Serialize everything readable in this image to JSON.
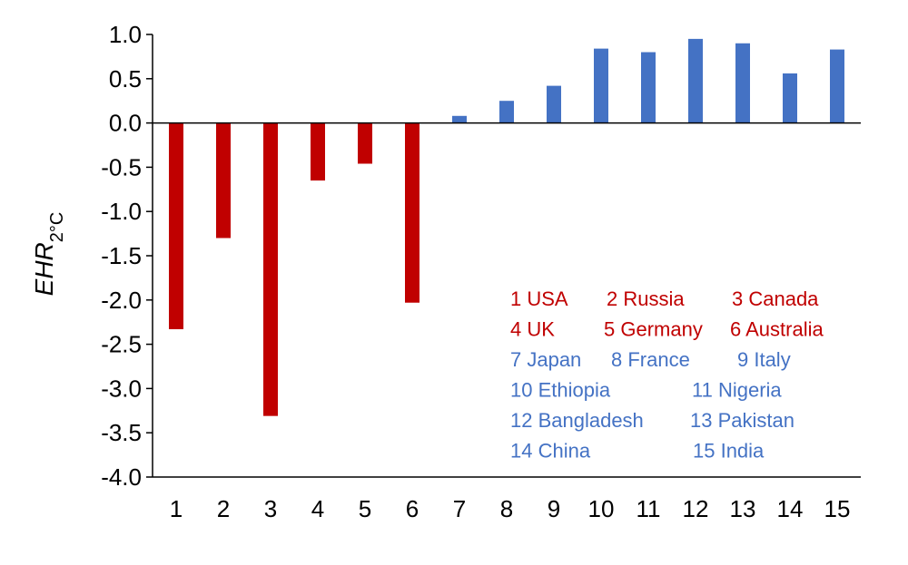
{
  "chart_data": {
    "type": "bar",
    "title": "",
    "xlabel": "",
    "ylabel": {
      "main": "EHR",
      "sub": "2°C"
    },
    "ylim": [
      -4.0,
      1.0
    ],
    "yticks": [
      "1.0",
      "0.5",
      "0.0",
      "-0.5",
      "-1.0",
      "-1.5",
      "-2.0",
      "-2.5",
      "-3.0",
      "-3.5",
      "-4.0"
    ],
    "ytick_values": [
      1.0,
      0.5,
      0.0,
      -0.5,
      -1.0,
      -1.5,
      -2.0,
      -2.5,
      -3.0,
      -3.5,
      -4.0
    ],
    "categories": [
      "1",
      "2",
      "3",
      "4",
      "5",
      "6",
      "7",
      "8",
      "9",
      "10",
      "11",
      "12",
      "13",
      "14",
      "15"
    ],
    "values": [
      -2.33,
      -1.3,
      -3.31,
      -0.65,
      -0.46,
      -2.03,
      0.08,
      0.25,
      0.42,
      0.84,
      0.8,
      0.95,
      0.9,
      0.56,
      0.83
    ],
    "colors": {
      "developed": "#c00000",
      "developing": "#4472c4"
    },
    "groups": [
      "developed",
      "developed",
      "developed",
      "developed",
      "developed",
      "developed",
      "developing",
      "developing",
      "developing",
      "developing",
      "developing",
      "developing",
      "developing",
      "developing",
      "developing"
    ],
    "legend_rows": [
      {
        "group": "developed",
        "items": [
          "1 USA",
          "2 Russia",
          "3 Canada"
        ]
      },
      {
        "group": "developed",
        "items": [
          "4 UK",
          "5 Germany",
          "6 Australia"
        ]
      },
      {
        "group": "developing",
        "items": [
          "7 Japan",
          "8 France",
          "9 Italy"
        ]
      },
      {
        "group": "developing",
        "items": [
          "10 Ethiopia",
          "11 Nigeria"
        ]
      },
      {
        "group": "developing",
        "items": [
          "12 Bangladesh",
          "13 Pakistan"
        ]
      },
      {
        "group": "developing",
        "items": [
          "14 China",
          "15 India"
        ]
      }
    ],
    "grid": false
  }
}
